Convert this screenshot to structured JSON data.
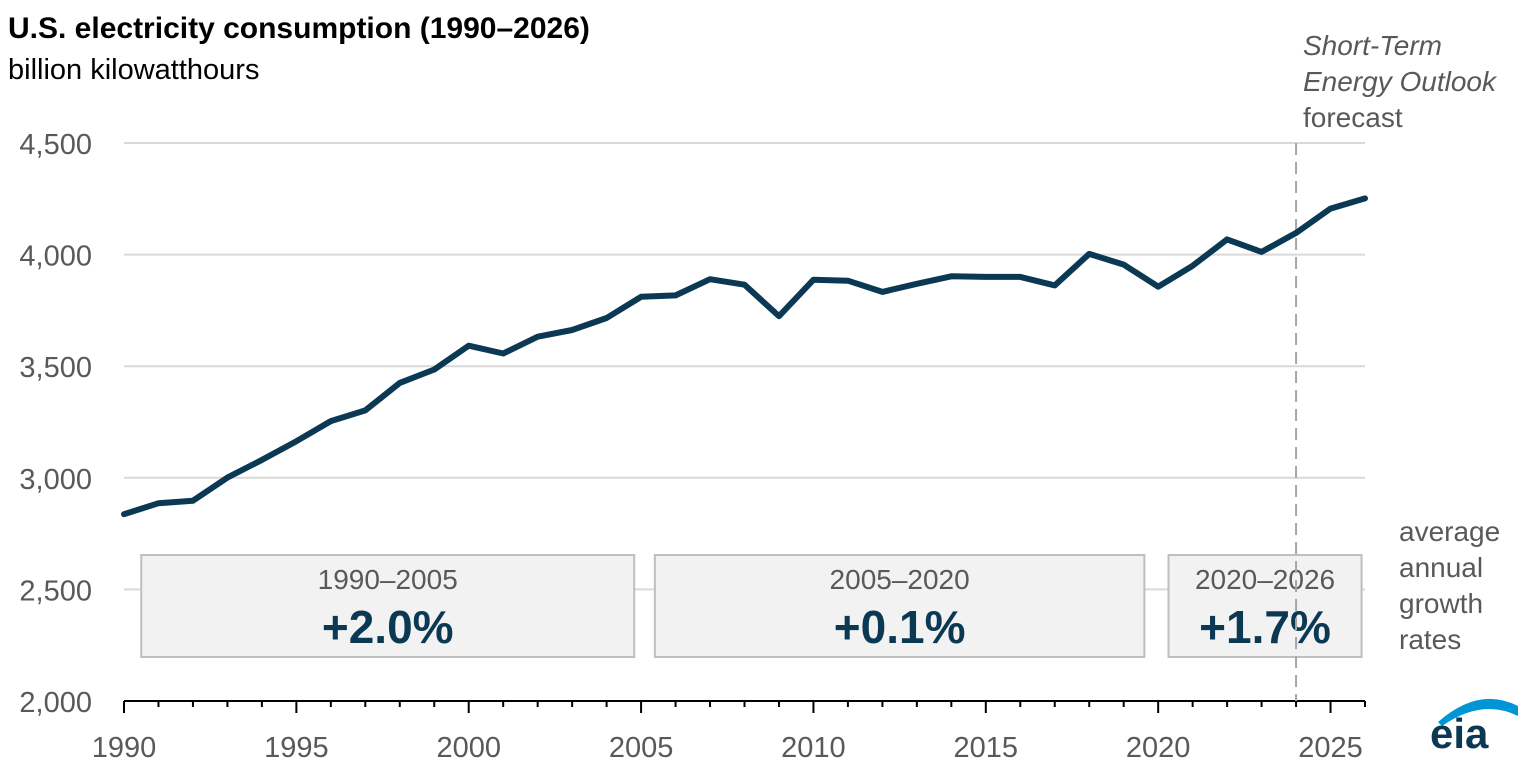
{
  "chart_data": {
    "type": "line",
    "title": "U.S. electricity consumption (1990–2026)",
    "subtitle": "billion kilowatthours",
    "xlabel": "",
    "ylabel": "",
    "xlim": [
      1990,
      2026
    ],
    "ylim": [
      2000,
      4500
    ],
    "x_ticks": [
      1990,
      1995,
      2000,
      2005,
      2010,
      2015,
      2020,
      2025
    ],
    "y_ticks": [
      2000,
      2500,
      3000,
      3500,
      4000,
      4500
    ],
    "grid": true,
    "series": [
      {
        "color": "#0b3954",
        "x": [
          1990,
          1991,
          1992,
          1993,
          1994,
          1995,
          1996,
          1997,
          1998,
          1999,
          2000,
          2001,
          2002,
          2003,
          2004,
          2005,
          2006,
          2007,
          2008,
          2009,
          2010,
          2011,
          2012,
          2013,
          2014,
          2015,
          2016,
          2017,
          2018,
          2019,
          2020,
          2021,
          2022,
          2023,
          2024,
          2025,
          2026
        ],
        "y": [
          2837,
          2886,
          2897,
          3001,
          3080,
          3164,
          3254,
          3302,
          3425,
          3485,
          3592,
          3557,
          3632,
          3662,
          3716,
          3811,
          3817,
          3890,
          3865,
          3724,
          3887,
          3883,
          3833,
          3869,
          3903,
          3900,
          3900,
          3862,
          4003,
          3955,
          3856,
          3950,
          4068,
          4012,
          4097,
          4206,
          4252
        ]
      }
    ],
    "forecast_start": 2024,
    "forecast_label": {
      "line1": "Short-Term",
      "line2": "Energy Outlook",
      "line3": "forecast"
    },
    "growth_boxes": [
      {
        "period": "1990–2005",
        "rate": "+2.0%",
        "x_start": 1990.5,
        "x_end": 2004.8
      },
      {
        "period": "2005–2020",
        "rate": "+0.1%",
        "x_start": 2005.4,
        "x_end": 2019.6
      },
      {
        "period": "2020–2026",
        "rate": "+1.7%",
        "x_start": 2020.3,
        "x_end": 2025.9
      }
    ],
    "growth_label": [
      "average",
      "annual",
      "growth",
      "rates"
    ]
  },
  "logo": {
    "text": "eia"
  },
  "colors": {
    "line": "#0b3954",
    "rate_text": "#0b3954",
    "grid": "#d9d9d9",
    "box_fill": "#f2f2f2",
    "box_border": "#bfbfbf",
    "muted_text": "#595959",
    "logo_arc": "#0096d6"
  }
}
